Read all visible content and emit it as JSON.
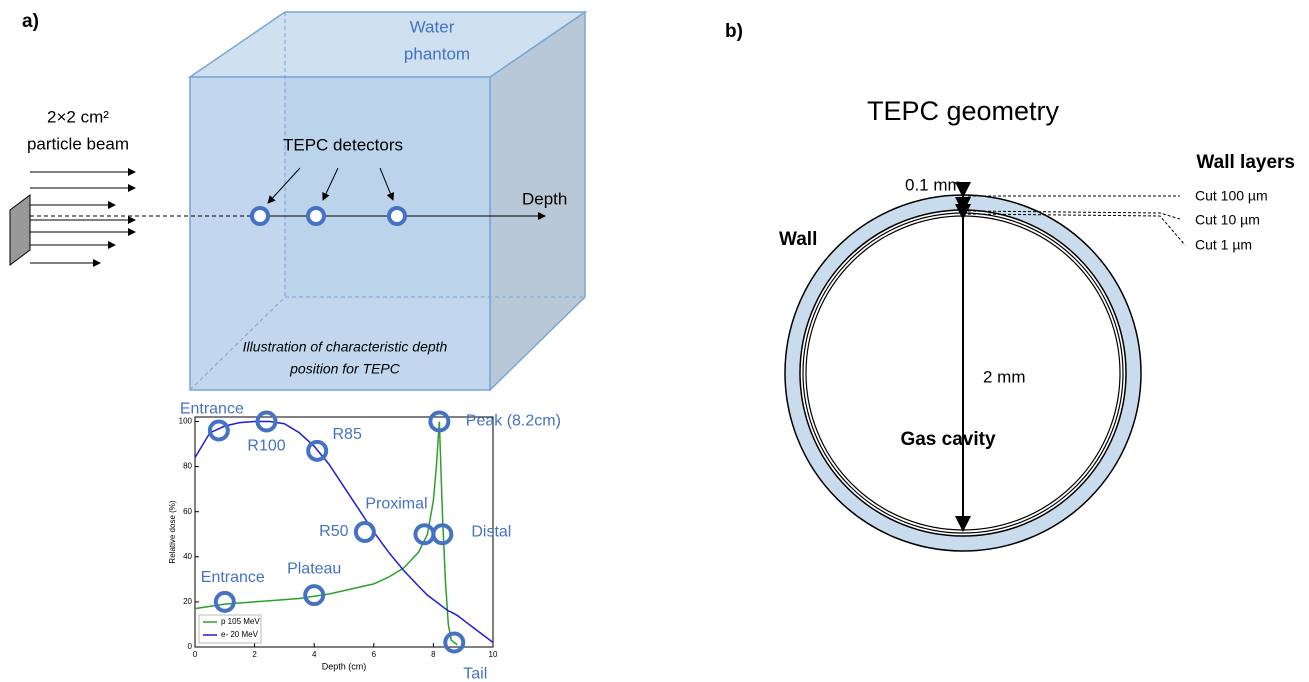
{
  "panel_a": {
    "label": "a)",
    "phantom_label": [
      "Water",
      "phantom"
    ],
    "beam_label": [
      "2×2 cm²",
      "particle beam"
    ],
    "detectors_label": "TEPC detectors",
    "depth_label": "Depth",
    "caption": [
      "Illustration of characteristic depth",
      "position for TEPC"
    ]
  },
  "panel_b": {
    "label": "b)",
    "title": "TEPC geometry",
    "wall_layers_title": "Wall layers",
    "thickness": "0.1 mm",
    "cuts": [
      "Cut 100 µm",
      "Cut 10 µm",
      "Cut 1 µm"
    ],
    "wall": "Wall",
    "diameter": "2 mm",
    "gas_cavity": "Gas cavity"
  },
  "chart_data": {
    "type": "line",
    "xlabel": "Depth (cm)",
    "ylabel": "Relative dose (%)",
    "xlim": [
      0,
      10
    ],
    "ylim": [
      0,
      102
    ],
    "xticks": [
      0,
      2,
      4,
      6,
      8,
      10
    ],
    "yticks": [
      0,
      20,
      40,
      60,
      80,
      100
    ],
    "x": [
      0,
      0.5,
      1,
      1.5,
      2,
      2.5,
      3,
      3.5,
      4,
      4.5,
      5,
      5.5,
      6,
      6.5,
      7,
      7.5,
      7.8,
      8,
      8.1,
      8.2,
      8.3,
      8.4,
      8.5,
      8.6,
      8.8,
      9,
      9.5,
      10
    ],
    "series": [
      {
        "name": "p 105 MeV",
        "color": "#2ca02c",
        "values": [
          17,
          18,
          19,
          19.5,
          20,
          20.5,
          21,
          21.5,
          22.5,
          23.5,
          25,
          26.5,
          28,
          31,
          35,
          42,
          50,
          65,
          80,
          100,
          60,
          30,
          10,
          3,
          1,
          null,
          null,
          null
        ]
      },
      {
        "name": "e- 20 MeV",
        "color": "#1f1fd6",
        "values": [
          84,
          95,
          98,
          99.5,
          100,
          100,
          99,
          95,
          89,
          81,
          71,
          61,
          51,
          42,
          34,
          27,
          23,
          21,
          20,
          19,
          18,
          17,
          16,
          15.5,
          14,
          12,
          7,
          2
        ]
      }
    ],
    "markers": [
      {
        "label": "Entrance",
        "x": 0.8,
        "y": 96
      },
      {
        "label": "R100",
        "x": 2.4,
        "y": 100
      },
      {
        "label": "R85",
        "x": 4.1,
        "y": 87
      },
      {
        "label": "R50",
        "x": 5.7,
        "y": 51
      },
      {
        "label": "Proximal",
        "x": 7.7,
        "y": 50
      },
      {
        "label": "Distal",
        "x": 8.3,
        "y": 50
      },
      {
        "label": "Peak (8.2cm)",
        "x": 8.2,
        "y": 100
      },
      {
        "label": "Entrance",
        "x": 1.0,
        "y": 20
      },
      {
        "label": "Plateau",
        "x": 4.0,
        "y": 23
      },
      {
        "label": "Tail",
        "x": 8.7,
        "y": 2
      }
    ]
  }
}
